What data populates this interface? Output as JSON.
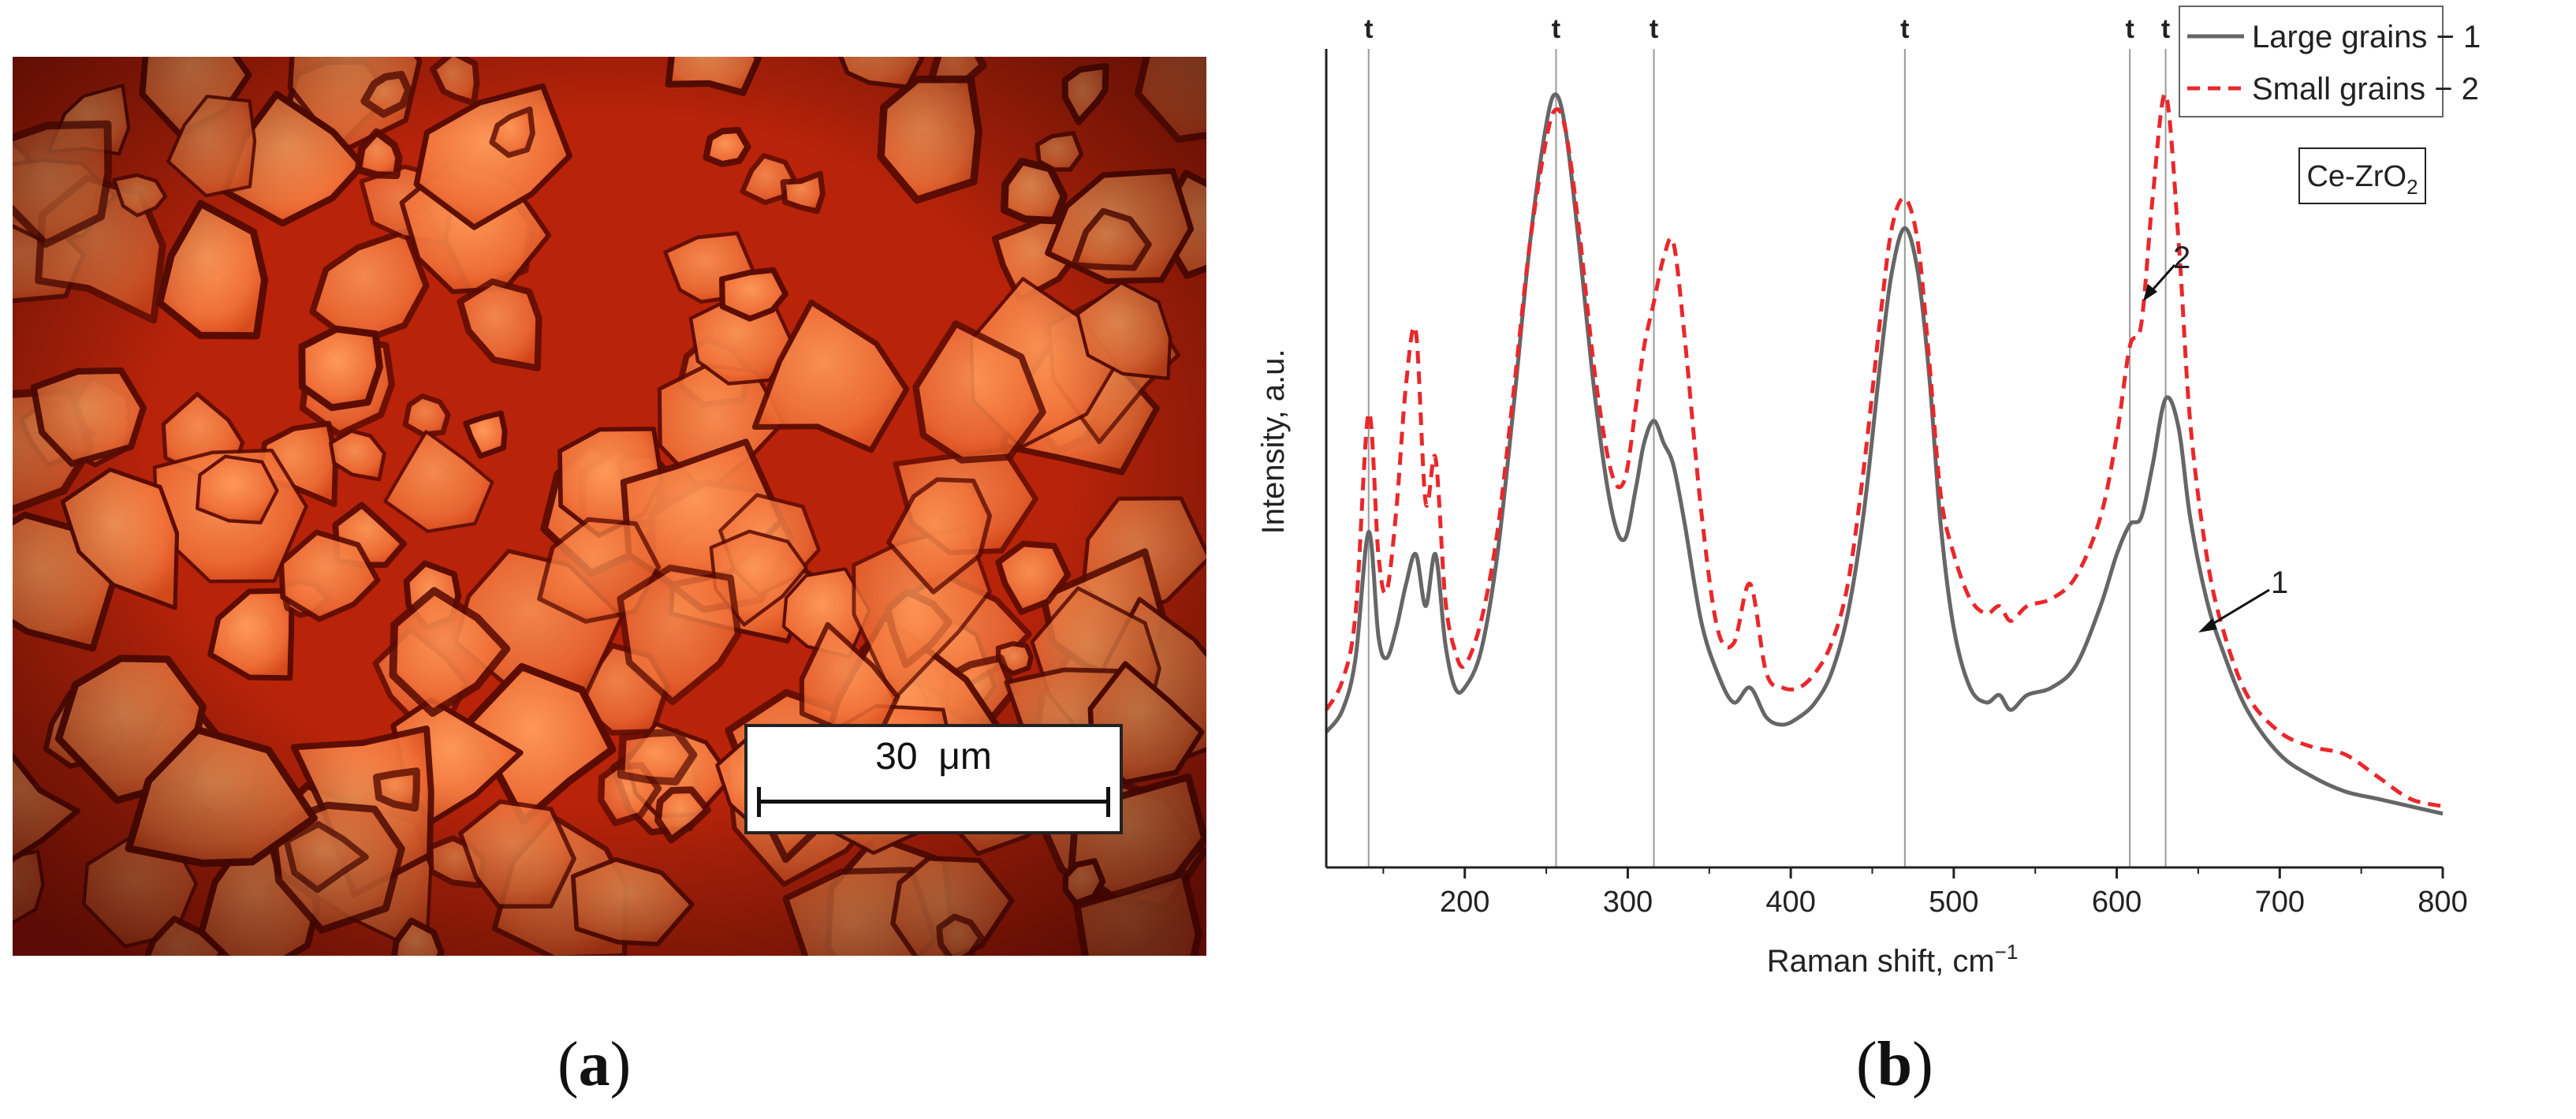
{
  "panel_a": {
    "label_open": "(",
    "label_letter": "a",
    "label_close": ")",
    "scale_bar_text": "30  μm"
  },
  "panel_b": {
    "label_open": "(",
    "label_letter": "b",
    "label_close": ")",
    "sample_label": "Ce-ZrO",
    "sample_label_sub": "2",
    "annotation_1": "1",
    "annotation_2": "2"
  },
  "colors": {
    "series_1": "#666666",
    "series_2": "#e8282c",
    "micrograph_base": "#c42a0c",
    "grain": "#f07038"
  },
  "chart_data": {
    "type": "line",
    "xlabel": "Raman shift, cm",
    "xlabel_sup": "−1",
    "ylabel": "Intensity, a.u.",
    "xlim": [
      115,
      800
    ],
    "ylim": [
      0,
      1
    ],
    "x_ticks": [
      200,
      300,
      400,
      500,
      600,
      700,
      800
    ],
    "grid": false,
    "legend_position": "top-right",
    "reference_lines": {
      "label": "t",
      "x": [
        141,
        256,
        316,
        470,
        608,
        630
      ]
    },
    "series": [
      {
        "name": "Large grains − 1",
        "style": "solid",
        "x": [
          115,
          125,
          133,
          141,
          147,
          152,
          158,
          164,
          170,
          176,
          182,
          188,
          194,
          200,
          210,
          220,
          230,
          240,
          250,
          256,
          262,
          270,
          280,
          290,
          298,
          305,
          310,
          316,
          322,
          328,
          335,
          345,
          355,
          365,
          375,
          385,
          395,
          405,
          415,
          425,
          435,
          445,
          455,
          462,
          470,
          478,
          485,
          492,
          500,
          510,
          520,
          528,
          535,
          545,
          560,
          575,
          590,
          600,
          608,
          615,
          622,
          630,
          638,
          645,
          655,
          665,
          680,
          700,
          720,
          740,
          760,
          780,
          800
        ],
        "y": [
          0.14,
          0.17,
          0.24,
          0.41,
          0.27,
          0.24,
          0.28,
          0.34,
          0.38,
          0.31,
          0.38,
          0.26,
          0.2,
          0.2,
          0.25,
          0.38,
          0.58,
          0.8,
          0.96,
          1.0,
          0.95,
          0.8,
          0.59,
          0.44,
          0.4,
          0.47,
          0.53,
          0.56,
          0.53,
          0.5,
          0.42,
          0.29,
          0.22,
          0.18,
          0.2,
          0.16,
          0.15,
          0.16,
          0.18,
          0.22,
          0.3,
          0.44,
          0.64,
          0.76,
          0.82,
          0.76,
          0.62,
          0.42,
          0.28,
          0.2,
          0.18,
          0.19,
          0.17,
          0.19,
          0.2,
          0.23,
          0.31,
          0.38,
          0.42,
          0.43,
          0.5,
          0.59,
          0.55,
          0.43,
          0.32,
          0.25,
          0.17,
          0.11,
          0.08,
          0.06,
          0.05,
          0.04,
          0.03
        ]
      },
      {
        "name": "Small grains − 2",
        "style": "dashed",
        "x": [
          115,
          125,
          133,
          141,
          147,
          152,
          158,
          164,
          170,
          176,
          182,
          188,
          194,
          200,
          210,
          220,
          230,
          240,
          250,
          256,
          262,
          270,
          280,
          290,
          298,
          305,
          310,
          316,
          322,
          328,
          335,
          345,
          355,
          365,
          375,
          385,
          395,
          405,
          415,
          425,
          435,
          445,
          455,
          462,
          470,
          478,
          485,
          492,
          500,
          510,
          520,
          528,
          535,
          545,
          560,
          575,
          590,
          600,
          608,
          615,
          622,
          630,
          638,
          645,
          655,
          665,
          680,
          700,
          720,
          740,
          760,
          780,
          800
        ],
        "y": [
          0.17,
          0.21,
          0.3,
          0.57,
          0.38,
          0.33,
          0.44,
          0.61,
          0.68,
          0.45,
          0.51,
          0.32,
          0.25,
          0.23,
          0.29,
          0.41,
          0.6,
          0.8,
          0.94,
          0.98,
          0.95,
          0.82,
          0.62,
          0.49,
          0.48,
          0.58,
          0.66,
          0.72,
          0.78,
          0.8,
          0.67,
          0.44,
          0.28,
          0.26,
          0.34,
          0.22,
          0.2,
          0.2,
          0.22,
          0.26,
          0.34,
          0.5,
          0.7,
          0.82,
          0.86,
          0.8,
          0.64,
          0.46,
          0.38,
          0.32,
          0.3,
          0.31,
          0.29,
          0.31,
          0.32,
          0.35,
          0.43,
          0.54,
          0.66,
          0.69,
          0.86,
          1.0,
          0.8,
          0.56,
          0.38,
          0.28,
          0.19,
          0.14,
          0.12,
          0.11,
          0.08,
          0.05,
          0.04
        ]
      }
    ]
  }
}
